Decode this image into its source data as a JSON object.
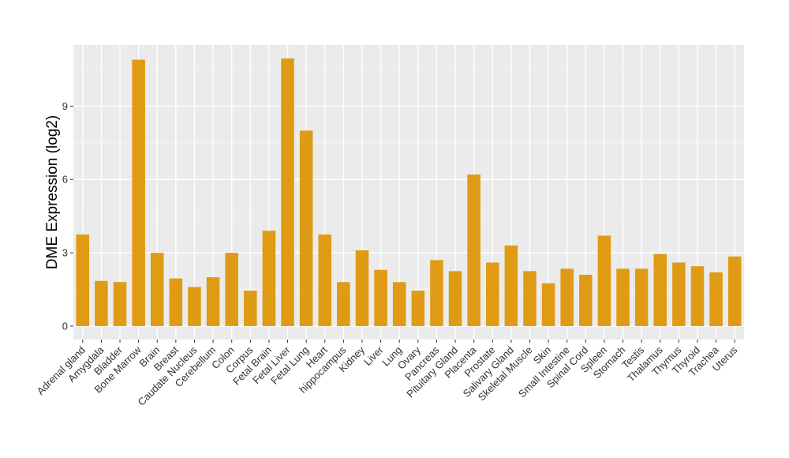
{
  "chart_data": {
    "type": "bar",
    "title": "",
    "xlabel": "",
    "ylabel": "DME Expression (log2)",
    "ylim": [
      -0.55,
      11.5
    ],
    "yticks": [
      0,
      3,
      6,
      9
    ],
    "grid": true,
    "panel_background": "#ebebeb",
    "bar_color": "#e09b14",
    "categories": [
      "Adrenal gland",
      "Amygdala",
      "Bladder",
      "Bone Marrow",
      "Brain",
      "Breast",
      "Caudate Nucleus",
      "Cerebellum",
      "Colon",
      "Corpus",
      "Fetal Brain",
      "Fetal Liver",
      "Fetal Lung",
      "Heart",
      "hippocampus",
      "Kidney",
      "Liver",
      "Lung",
      "Ovary",
      "Pancreas",
      "Pituitary Gland",
      "Placenta",
      "Prostate",
      "Salivary Gland",
      "Skeletal Muscle",
      "Skin",
      "Small Intestine",
      "Spinal Cord",
      "Spleen",
      "Stomach",
      "Testis",
      "Thalamus",
      "Thymus",
      "Thyroid",
      "Trachea",
      "Uterus"
    ],
    "values": [
      3.75,
      1.85,
      1.8,
      10.9,
      3.0,
      1.95,
      1.6,
      2.0,
      3.0,
      1.45,
      3.9,
      10.95,
      8.0,
      3.75,
      1.8,
      3.1,
      2.3,
      1.8,
      1.45,
      2.7,
      2.25,
      6.2,
      2.6,
      3.3,
      2.25,
      1.75,
      2.35,
      2.1,
      3.7,
      2.35,
      2.35,
      2.95,
      2.6,
      2.45,
      2.2,
      2.85
    ]
  }
}
